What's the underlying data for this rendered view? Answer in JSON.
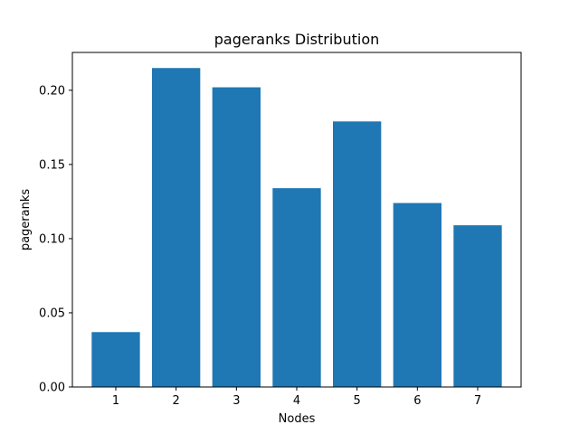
{
  "chart_data": {
    "type": "bar",
    "title": "pageranks Distribution",
    "xlabel": "Nodes",
    "ylabel": "pageranks",
    "categories": [
      "1",
      "2",
      "3",
      "4",
      "5",
      "6",
      "7"
    ],
    "values": [
      0.037,
      0.215,
      0.202,
      0.134,
      0.179,
      0.124,
      0.109
    ],
    "ylim": [
      0,
      0.2255
    ],
    "yticks": [
      0.0,
      0.05,
      0.1,
      0.15,
      0.2
    ],
    "ytick_labels": [
      "0.00",
      "0.05",
      "0.10",
      "0.15",
      "0.20"
    ],
    "grid": false,
    "legend": false,
    "bar_color": "#1f77b4"
  }
}
